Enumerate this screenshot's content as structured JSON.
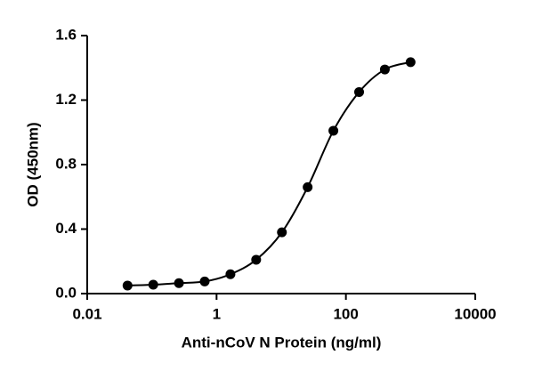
{
  "chart_data": {
    "type": "scatter",
    "x_label": "Anti-nCoV N Protein (ng/ml)",
    "y_label": "OD (450nm)",
    "x": [
      0.042,
      0.105,
      0.262,
      0.655,
      1.638,
      4.096,
      10.24,
      25.6,
      64,
      160,
      400,
      1000
    ],
    "series": [
      {
        "color": "#000000",
        "values": [
          0.05,
          0.055,
          0.065,
          0.075,
          0.12,
          0.21,
          0.38,
          0.66,
          1.01,
          1.25,
          1.39,
          1.435
        ]
      }
    ],
    "xscale": "log",
    "xlim": [
      0.01,
      10000
    ],
    "xticks": [
      0.01,
      1,
      100,
      10000
    ],
    "ylim": [
      0,
      1.6
    ],
    "yticks": [
      {
        "value": 0,
        "label": "0.0"
      },
      0.4,
      0.8,
      1.2,
      1.6
    ]
  }
}
